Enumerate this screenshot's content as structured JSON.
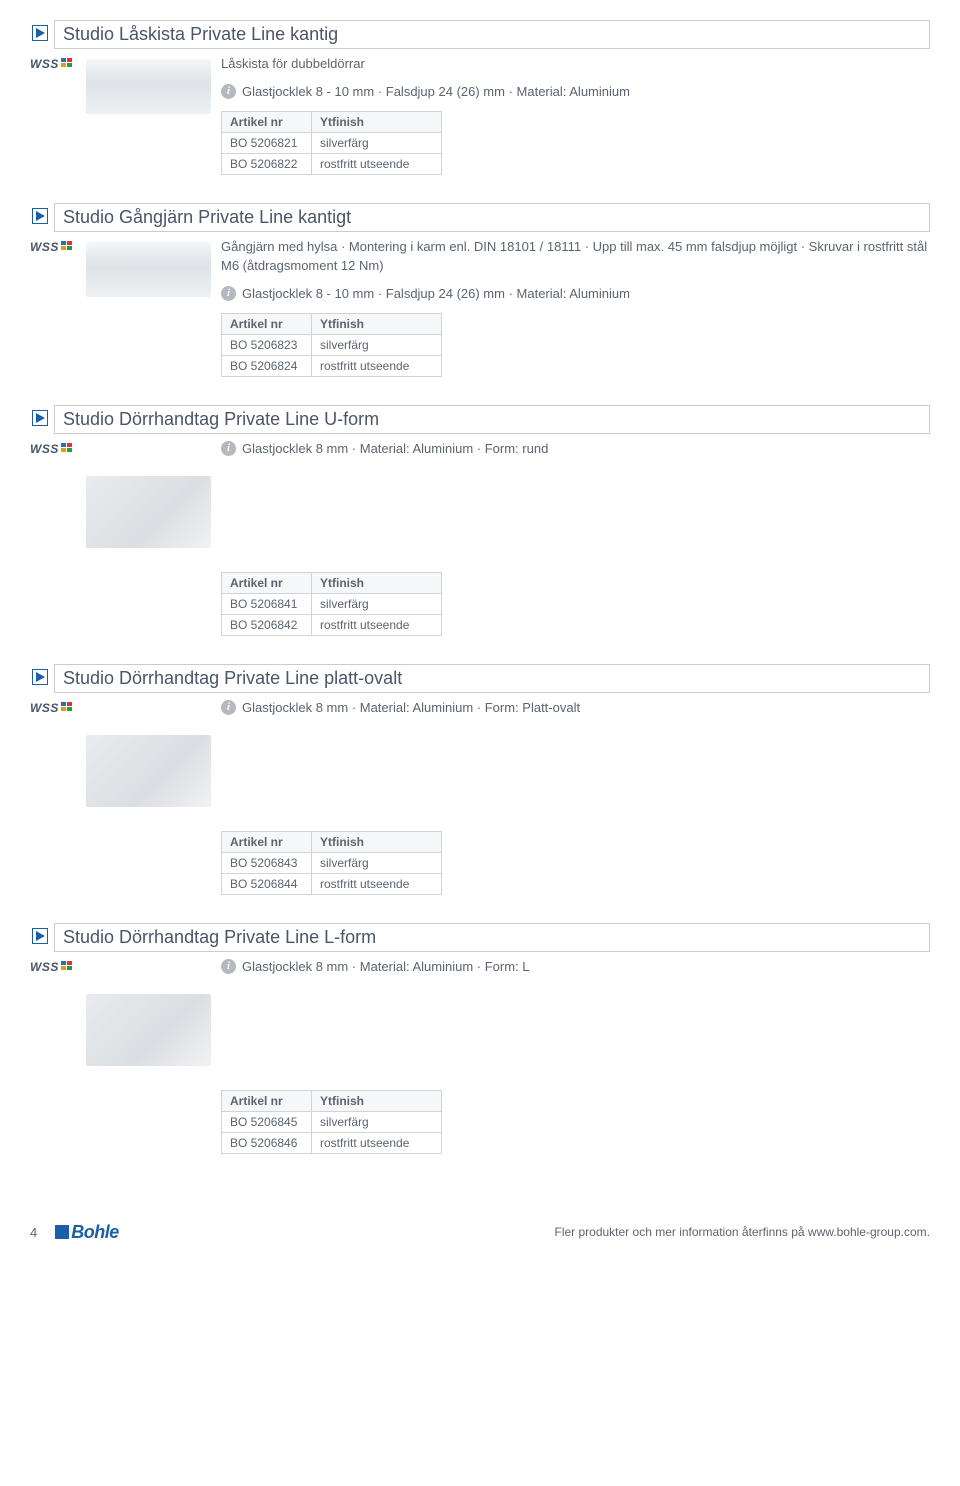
{
  "colors": {
    "triangle_stroke": "#1b5fa6",
    "triangle_fill": "#1b5fa6",
    "border": "#c8ccd0",
    "text": "#4a5568",
    "table_border": "#d0d3d7",
    "table_header_bg": "#f6f7f8",
    "info_bg": "#b5b9bf"
  },
  "brand_label": "WSS",
  "footer": {
    "page_number": "4",
    "brand": "Bohle",
    "note": "Fler produkter och mer information återfinns på www.bohle-group.com."
  },
  "table_headers": {
    "col1": "Artikel nr",
    "col2": "Ytfinish"
  },
  "products": [
    {
      "title": "Studio Låskista Private Line kantig",
      "subtitle": "Låskista för dubbeldörrar",
      "note": "Glastjocklek 8 - 10 mm · Falsdjup 24 (26) mm · Material: Aluminium",
      "image_shape": "tall",
      "rows": [
        {
          "sku": "BO 5206821",
          "finish": "silverfärg"
        },
        {
          "sku": "BO 5206822",
          "finish": "rostfritt utseende"
        }
      ]
    },
    {
      "title": "Studio Gångjärn Private Line kantigt",
      "subtitle": "Gångjärn med hylsa · Montering i karm enl. DIN 18101 / 18111 · Upp till max. 45 mm falsdjup möjligt · Skruvar i rostfritt stål M6 (åtdragsmoment 12 Nm)",
      "note": "Glastjocklek 8 - 10 mm · Falsdjup 24 (26) mm · Material: Aluminium",
      "image_shape": "tall",
      "rows": [
        {
          "sku": "BO 5206823",
          "finish": "silverfärg"
        },
        {
          "sku": "BO 5206824",
          "finish": "rostfritt utseende"
        }
      ]
    },
    {
      "title": "Studio Dörrhandtag Private Line U-form",
      "subtitle": "",
      "note": "Glastjocklek 8 mm · Material: Aluminium · Form: rund",
      "image_shape": "handle",
      "rows": [
        {
          "sku": "BO 5206841",
          "finish": "silverfärg"
        },
        {
          "sku": "BO 5206842",
          "finish": "rostfritt utseende"
        }
      ]
    },
    {
      "title": "Studio Dörrhandtag Private Line platt-ovalt",
      "subtitle": "",
      "note": "Glastjocklek 8 mm · Material: Aluminium · Form: Platt-ovalt",
      "image_shape": "handle",
      "rows": [
        {
          "sku": "BO 5206843",
          "finish": "silverfärg"
        },
        {
          "sku": "BO 5206844",
          "finish": "rostfritt utseende"
        }
      ]
    },
    {
      "title": "Studio Dörrhandtag Private Line L-form",
      "subtitle": "",
      "note": "Glastjocklek 8 mm · Material: Aluminium · Form: L",
      "image_shape": "handle",
      "rows": [
        {
          "sku": "BO 5206845",
          "finish": "silverfärg"
        },
        {
          "sku": "BO 5206846",
          "finish": "rostfritt utseende"
        }
      ]
    }
  ]
}
